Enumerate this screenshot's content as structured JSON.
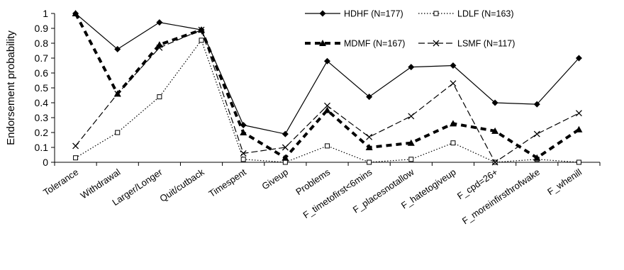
{
  "chart_data": {
    "type": "line",
    "title": "",
    "xlabel": "",
    "ylabel": "Endorsement probability",
    "ylim": [
      0,
      1
    ],
    "yticks": [
      "0",
      "0.1",
      "0.2",
      "0.3",
      "0.4",
      "0.5",
      "0.6",
      "0.7",
      "0.8",
      "0.9",
      "1"
    ],
    "grid": false,
    "legend_position": "top-right",
    "categories": [
      "Tolerance",
      "Withdrawal",
      "Larger/Longer",
      "Quit/cutback",
      "Timespent",
      "Giveup",
      "Problems",
      "F_timetofirst<6mins",
      "F_placesnotallow",
      "F_hatetogiveup",
      "F_cpd=26+",
      "F_moreinfirsthrofwake",
      "F_whenill"
    ],
    "series": [
      {
        "name": "HDHF (N=177)",
        "style": "solid-diamond",
        "values": [
          1.0,
          0.76,
          0.94,
          0.89,
          0.25,
          0.19,
          0.68,
          0.44,
          0.64,
          0.65,
          0.4,
          0.39,
          0.7
        ]
      },
      {
        "name": "LDLF (N=163)",
        "style": "dotted-square",
        "values": [
          0.03,
          0.2,
          0.44,
          0.82,
          0.02,
          0.0,
          0.11,
          0.0,
          0.02,
          0.13,
          0.0,
          0.02,
          0.0
        ]
      },
      {
        "name": "MDMF (N=167)",
        "style": "bold-dashed-triangle",
        "values": [
          1.0,
          0.46,
          0.79,
          0.89,
          0.2,
          0.03,
          0.35,
          0.1,
          0.13,
          0.26,
          0.21,
          0.03,
          0.22
        ]
      },
      {
        "name": "LSMF (N=117)",
        "style": "dashed-x",
        "values": [
          0.11,
          0.46,
          0.77,
          0.89,
          0.06,
          0.1,
          0.38,
          0.17,
          0.31,
          0.53,
          0.0,
          0.19,
          0.33
        ]
      }
    ]
  }
}
